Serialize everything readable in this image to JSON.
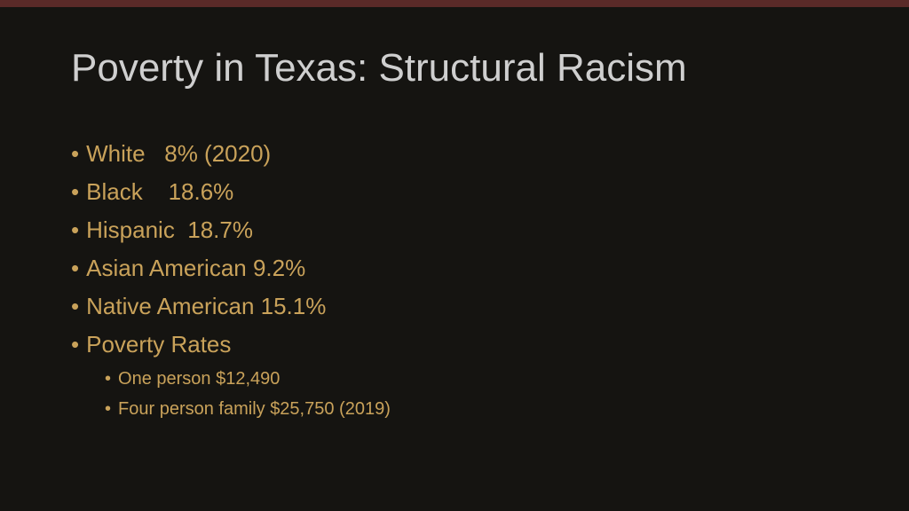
{
  "title": "Poverty in Texas: Structural Racism",
  "bullets": [
    "White   8% (2020)",
    "Black    18.6%",
    "Hispanic  18.7%",
    "Asian American 9.2%",
    "Native American 15.1%",
    "Poverty Rates"
  ],
  "sub_bullets": [
    "One person $12,490",
    "Four person family $25,750 (2019)"
  ]
}
